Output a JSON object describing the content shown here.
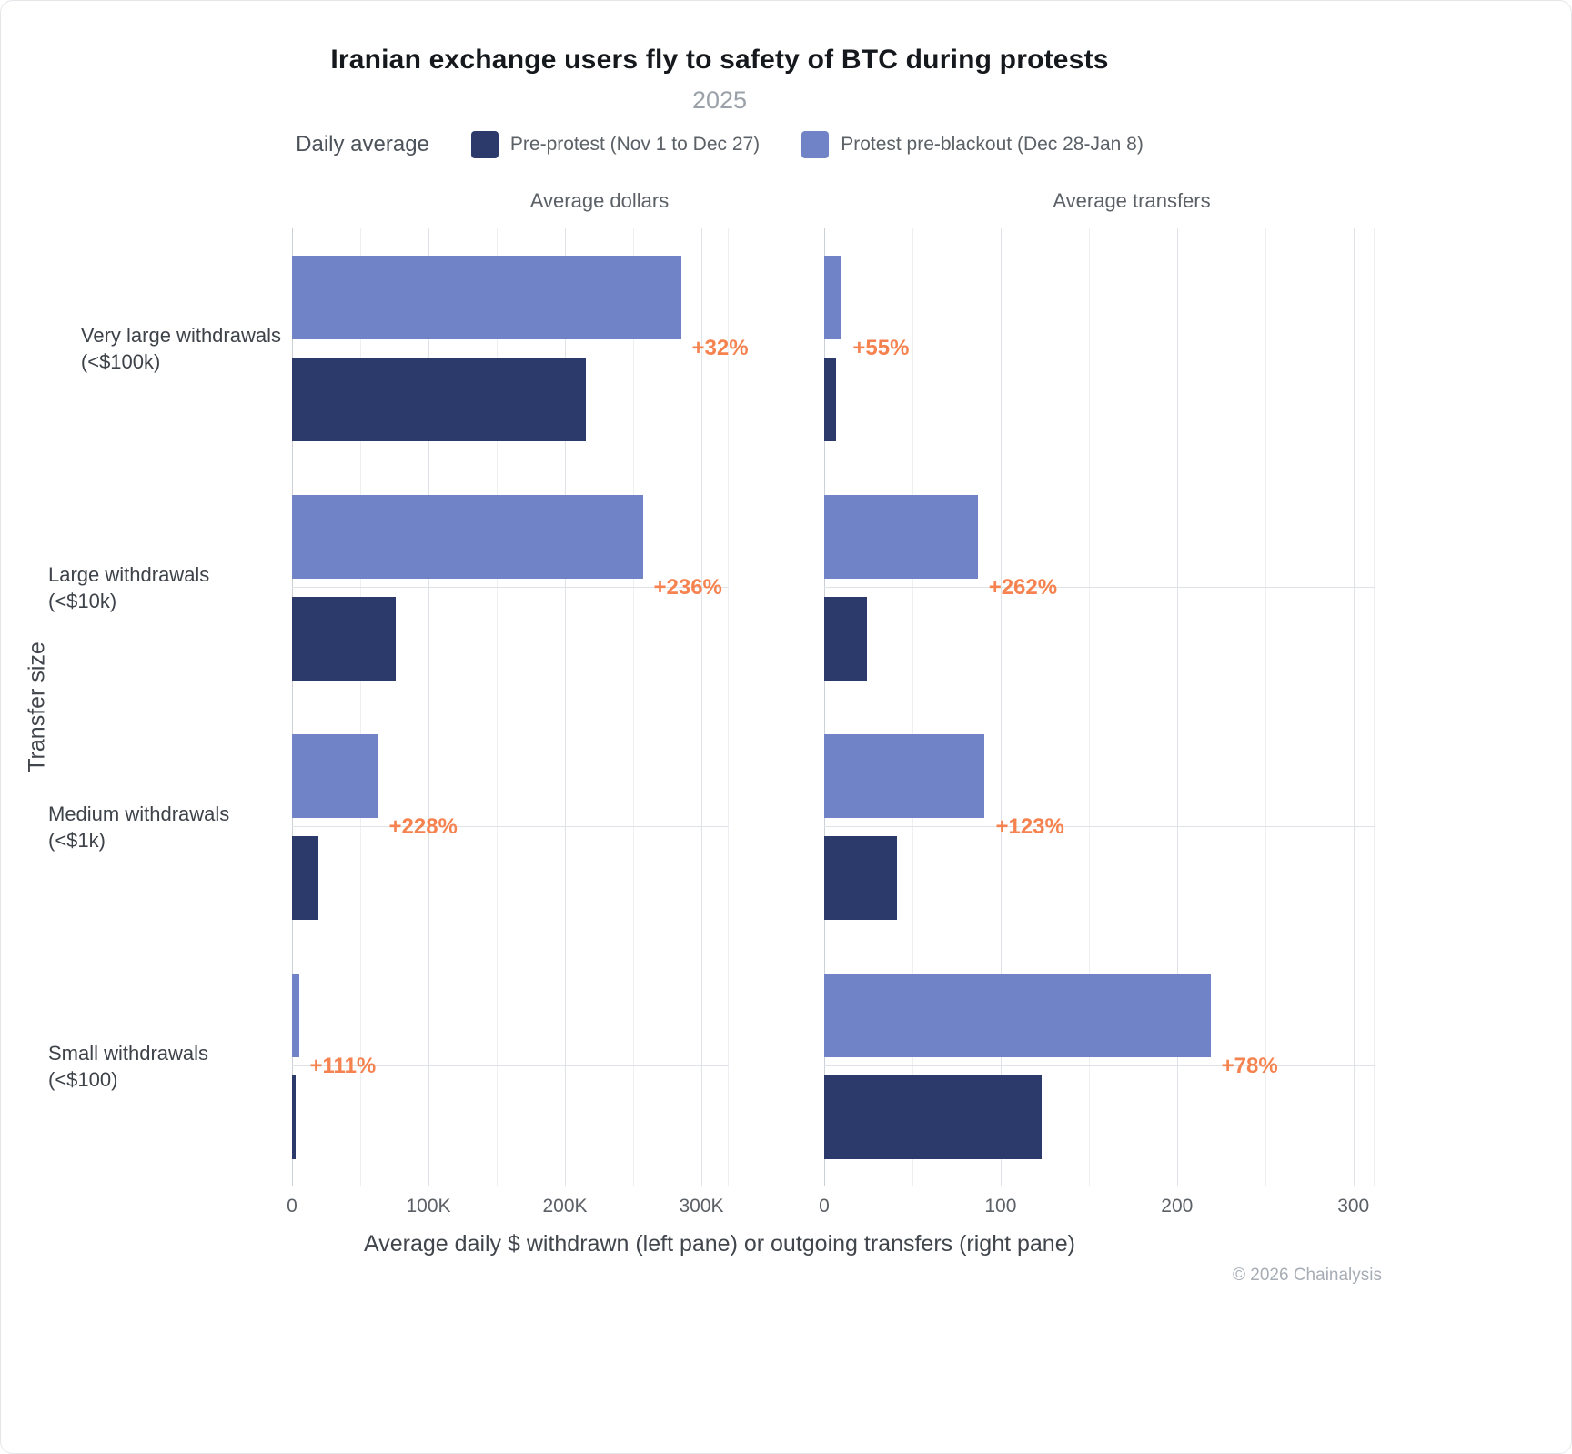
{
  "chart_data": {
    "type": "bar",
    "orientation": "horizontal",
    "title": "Iranian exchange users fly to safety of BTC during protests",
    "subtitle": "2025",
    "legend_label": "Daily average",
    "legend_position": "top",
    "grid": true,
    "ylabel": "Transfer size",
    "xlabel": "Average daily $ withdrawn (left pane) or outgoing transfers (right pane)",
    "annotation_color": "#f5824f",
    "categories": [
      "Very large withdrawals\n(<$100k)",
      "Large withdrawals (<$10k)",
      "Medium withdrawals (<$1k)",
      "Small withdrawals (<$100)"
    ],
    "series": [
      {
        "name": "Pre-protest (Nov 1 to Dec 27)",
        "color": "#2b3a6b"
      },
      {
        "name": "Protest pre-blackout (Dec 28-Jan 8)",
        "color": "#6f83c6"
      }
    ],
    "panes": [
      {
        "title": "Average dollars",
        "xlim": [
          0,
          320000
        ],
        "ticks": [
          {
            "v": 0,
            "label": "0"
          },
          {
            "v": 100000,
            "label": "100K"
          },
          {
            "v": 200000,
            "label": "200K"
          },
          {
            "v": 300000,
            "label": "300K"
          }
        ],
        "minor_ticks": [
          50000,
          150000,
          250000
        ],
        "series": [
          {
            "name": "Pre-protest (Nov 1 to Dec 27)",
            "values": [
              215000,
              76000,
              19000,
              2400
            ]
          },
          {
            "name": "Protest pre-blackout (Dec 28-Jan 8)",
            "values": [
              285000,
              257000,
              63000,
              5000
            ]
          }
        ],
        "pct_change": [
          "+32%",
          "+236%",
          "+228%",
          "+111%"
        ]
      },
      {
        "title": "Average transfers",
        "xlim": [
          0,
          312
        ],
        "ticks": [
          {
            "v": 0,
            "label": "0"
          },
          {
            "v": 100,
            "label": "100"
          },
          {
            "v": 200,
            "label": "200"
          },
          {
            "v": 300,
            "label": "300"
          }
        ],
        "minor_ticks": [
          50,
          150,
          250
        ],
        "series": [
          {
            "name": "Pre-protest (Nov 1 to Dec 27)",
            "values": [
              6.5,
              24,
              41,
              123
            ]
          },
          {
            "name": "Protest pre-blackout (Dec 28-Jan 8)",
            "values": [
              10,
              87,
              91,
              219
            ]
          }
        ],
        "pct_change": [
          "+55%",
          "+262%",
          "+123%",
          "+78%"
        ]
      }
    ]
  },
  "footer": {
    "credit": "© 2026 Chainalysis"
  }
}
